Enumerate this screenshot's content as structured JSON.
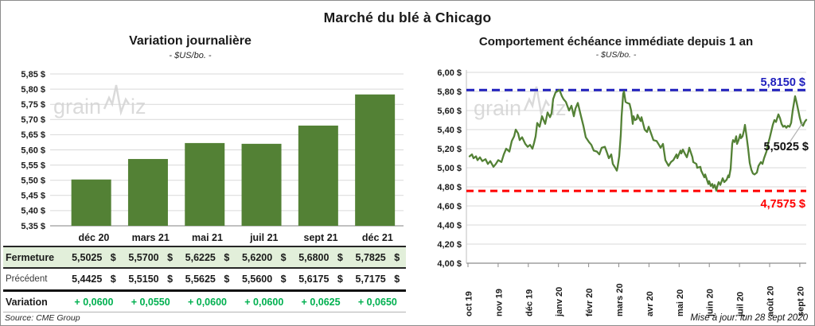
{
  "title": "Marché du blé à Chicago",
  "source": "Source: CME Group",
  "updated": "Mise à jour: lun 28 sept 2020",
  "watermark": {
    "part1": "grain",
    "part2": "iz"
  },
  "colors": {
    "green": "#538135",
    "line_green": "#538135",
    "table_row_green": "#e2efda",
    "variation_green": "#00B050",
    "blue": "#2020BE",
    "red": "#FF0000",
    "grid": "#d9d9d9",
    "axis": "#8c8c8c",
    "text": "#1a1a1a",
    "watermark_gray": "#d2d2d2"
  },
  "chart_data": [
    {
      "type": "bar",
      "title": "Variation  journalière",
      "subtitle": "- $US/bo. -",
      "categories": [
        "déc 20",
        "mars 21",
        "mai 21",
        "juil 21",
        "sept 21",
        "déc 21"
      ],
      "values": [
        5.5025,
        5.57,
        5.6225,
        5.62,
        5.68,
        5.7825
      ],
      "ylim": [
        5.35,
        5.85
      ],
      "y_tick_labels": [
        "5,85 $",
        "5,80 $",
        "5,75 $",
        "5,70 $",
        "5,65 $",
        "5,60 $",
        "5,55 $",
        "5,50 $",
        "5,45 $",
        "5,40 $",
        "5,35 $"
      ],
      "grid": true,
      "table": {
        "rows": [
          {
            "style": "close",
            "label": "Fermeture",
            "money": true,
            "values": [
              "5,5025 $",
              "5,5700 $",
              "5,6225 $",
              "5,6200 $",
              "5,6800 $",
              "5,7825 $"
            ]
          },
          {
            "style": "previous",
            "label": "Précédent",
            "money": true,
            "values": [
              "5,4425 $",
              "5,5150 $",
              "5,5625 $",
              "5,5600 $",
              "5,6175 $",
              "5,7175 $"
            ]
          },
          {
            "style": "variation",
            "label": "Variation",
            "money": false,
            "values": [
              "+ 0,0600",
              "+ 0,0550",
              "+ 0,0600",
              "+ 0,0600",
              "+ 0,0625",
              "+ 0,0650"
            ]
          }
        ]
      }
    },
    {
      "type": "line",
      "title": "Comportement  échéance immédiate depuis 1 an",
      "subtitle": "- $US/bo. -",
      "x_ticks": [
        "oct 19",
        "nov 19",
        "déc 19",
        "janv 20",
        "févr 20",
        "mars 20",
        "avr 20",
        "mai 20",
        "juin 20",
        "juil 20",
        "août 20",
        "sept 20"
      ],
      "ylim": [
        4.0,
        6.0
      ],
      "y_tick_labels": [
        "6,00 $",
        "5,80 $",
        "5,60 $",
        "5,40 $",
        "5,20 $",
        "5,00 $",
        "4,80 $",
        "4,60 $",
        "4,40 $",
        "4,20 $",
        "4,00 $"
      ],
      "grid": true,
      "legend": "none",
      "high_line": {
        "value": 5.815,
        "label": "5,8150 $"
      },
      "low_line": {
        "value": 4.7575,
        "label": "4,7575 $"
      },
      "last_value_label": "5,5025 $",
      "last_value": 5.5025,
      "series": [
        {
          "points": [
            [
              2,
              5.12
            ],
            [
              5,
              5.14
            ],
            [
              7,
              5.1
            ],
            [
              10,
              5.12
            ],
            [
              12,
              5.08
            ],
            [
              15,
              5.11
            ],
            [
              18,
              5.07
            ],
            [
              22,
              5.09
            ],
            [
              25,
              5.04
            ],
            [
              28,
              5.07
            ],
            [
              32,
              5.01
            ],
            [
              35,
              5.04
            ],
            [
              38,
              5.08
            ],
            [
              42,
              5.06
            ],
            [
              45,
              5.14
            ],
            [
              48,
              5.2
            ],
            [
              52,
              5.17
            ],
            [
              55,
              5.28
            ],
            [
              58,
              5.33
            ],
            [
              60,
              5.4
            ],
            [
              63,
              5.36
            ],
            [
              65,
              5.29
            ],
            [
              68,
              5.32
            ],
            [
              72,
              5.25
            ],
            [
              75,
              5.22
            ],
            [
              78,
              5.24
            ],
            [
              81,
              5.2
            ],
            [
              83,
              5.26
            ],
            [
              85,
              5.33
            ],
            [
              87,
              5.47
            ],
            [
              90,
              5.43
            ],
            [
              93,
              5.54
            ],
            [
              95,
              5.5
            ],
            [
              97,
              5.46
            ],
            [
              100,
              5.58
            ],
            [
              103,
              5.53
            ],
            [
              105,
              5.57
            ],
            [
              107,
              5.72
            ],
            [
              110,
              5.79
            ],
            [
              112,
              5.8
            ],
            [
              115,
              5.815
            ],
            [
              118,
              5.75
            ],
            [
              120,
              5.72
            ],
            [
              123,
              5.69
            ],
            [
              127,
              5.6
            ],
            [
              130,
              5.65
            ],
            [
              133,
              5.54
            ],
            [
              135,
              5.62
            ],
            [
              138,
              5.68
            ],
            [
              142,
              5.54
            ],
            [
              145,
              5.44
            ],
            [
              148,
              5.32
            ],
            [
              152,
              5.27
            ],
            [
              155,
              5.24
            ],
            [
              158,
              5.18
            ],
            [
              162,
              5.17
            ],
            [
              165,
              5.14
            ],
            [
              168,
              5.21
            ],
            [
              172,
              5.22
            ],
            [
              175,
              5.15
            ],
            [
              177,
              5.1
            ],
            [
              180,
              5.14
            ],
            [
              182,
              5.04
            ],
            [
              185,
              5.0
            ],
            [
              187,
              4.97
            ],
            [
              188,
              5.01
            ],
            [
              190,
              5.12
            ],
            [
              192,
              5.35
            ],
            [
              193,
              5.54
            ],
            [
              195,
              5.775
            ],
            [
              196,
              5.8
            ],
            [
              198,
              5.69
            ],
            [
              200,
              5.68
            ],
            [
              203,
              5.67
            ],
            [
              205,
              5.6
            ],
            [
              207,
              5.46
            ],
            [
              208,
              5.54
            ],
            [
              210,
              5.5
            ],
            [
              212,
              5.51
            ],
            [
              213,
              5.555
            ],
            [
              215,
              5.52
            ],
            [
              217,
              5.49
            ],
            [
              218,
              5.53
            ],
            [
              222,
              5.4
            ],
            [
              225,
              5.375
            ],
            [
              227,
              5.43
            ],
            [
              230,
              5.36
            ],
            [
              233,
              5.29
            ],
            [
              237,
              5.28
            ],
            [
              240,
              5.24
            ],
            [
              242,
              5.21
            ],
            [
              245,
              5.25
            ],
            [
              248,
              5.08
            ],
            [
              252,
              5.02
            ],
            [
              255,
              5.06
            ],
            [
              258,
              5.08
            ],
            [
              262,
              5.14
            ],
            [
              263,
              5.1
            ],
            [
              267,
              5.18
            ],
            [
              268,
              5.15
            ],
            [
              270,
              5.19
            ],
            [
              273,
              5.14
            ],
            [
              275,
              5.11
            ],
            [
              277,
              5.17
            ],
            [
              278,
              5.21
            ],
            [
              282,
              5.11
            ],
            [
              283,
              5.06
            ],
            [
              287,
              5.04
            ],
            [
              288,
              5.0
            ],
            [
              292,
              5.01
            ],
            [
              293,
              4.97
            ],
            [
              297,
              4.9
            ],
            [
              298,
              4.93
            ],
            [
              302,
              4.83
            ],
            [
              303,
              4.86
            ],
            [
              305,
              4.81
            ],
            [
              307,
              4.83
            ],
            [
              308,
              4.79
            ],
            [
              310,
              4.82
            ],
            [
              312,
              4.76
            ],
            [
              313,
              4.8
            ],
            [
              315,
              4.85
            ],
            [
              317,
              4.82
            ],
            [
              320,
              4.89
            ],
            [
              322,
              4.85
            ],
            [
              325,
              4.875
            ],
            [
              327,
              4.92
            ],
            [
              328,
              4.9
            ],
            [
              330,
              4.99
            ],
            [
              332,
              5.25
            ],
            [
              333,
              5.29
            ],
            [
              335,
              5.27
            ],
            [
              337,
              5.33
            ],
            [
              338,
              5.25
            ],
            [
              340,
              5.29
            ],
            [
              342,
              5.35
            ],
            [
              343,
              5.31
            ],
            [
              345,
              5.33
            ],
            [
              347,
              5.4
            ],
            [
              348,
              5.45
            ],
            [
              350,
              5.33
            ],
            [
              352,
              5.2
            ],
            [
              354,
              5.05
            ],
            [
              356,
              4.98
            ],
            [
              358,
              4.94
            ],
            [
              360,
              4.93
            ],
            [
              363,
              4.95
            ],
            [
              365,
              5.02
            ],
            [
              368,
              5.06
            ],
            [
              370,
              5.04
            ],
            [
              372,
              5.1
            ],
            [
              375,
              5.17
            ],
            [
              377,
              5.25
            ],
            [
              379,
              5.31
            ],
            [
              381,
              5.38
            ],
            [
              383,
              5.45
            ],
            [
              385,
              5.5
            ],
            [
              387,
              5.48
            ],
            [
              390,
              5.56
            ],
            [
              392,
              5.52
            ],
            [
              394,
              5.46
            ],
            [
              396,
              5.43
            ],
            [
              398,
              5.44
            ],
            [
              400,
              5.42
            ],
            [
              402,
              5.44
            ],
            [
              404,
              5.43
            ],
            [
              406,
              5.47
            ],
            [
              408,
              5.6
            ],
            [
              410,
              5.7
            ],
            [
              411,
              5.75
            ],
            [
              413,
              5.68
            ],
            [
              415,
              5.6
            ],
            [
              417,
              5.52
            ],
            [
              419,
              5.46
            ],
            [
              421,
              5.44
            ],
            [
              423,
              5.48
            ],
            [
              425,
              5.5025
            ]
          ]
        }
      ]
    }
  ]
}
